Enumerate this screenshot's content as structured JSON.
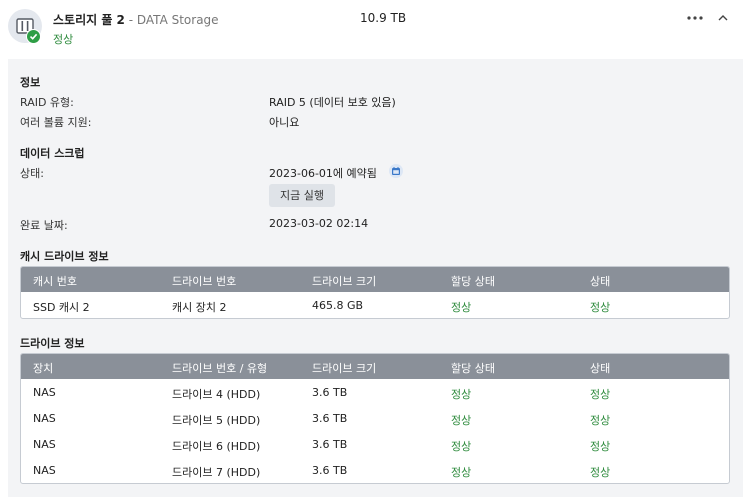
{
  "header": {
    "pool_name": "스토리지 풀 2",
    "pool_desc": " - DATA Storage",
    "status": "정상",
    "size": "10.9 TB",
    "more_icon": "more-horizontal-icon",
    "collapse_icon": "chevron-up-icon"
  },
  "info": {
    "section_title": "정보",
    "raid_type_label": "RAID 유형:",
    "raid_type_value": "RAID 5 (데이터 보호 있음)",
    "multi_volume_label": "여러 볼륨 지원:",
    "multi_volume_value": "아니요"
  },
  "scrub": {
    "section_title": "데이터 스크럽",
    "status_label": "상태:",
    "status_value": "2023-06-01에 예약됨",
    "schedule_icon": "calendar-icon",
    "run_now_label": "지금 실행",
    "completed_label": "완료 날짜:",
    "completed_value": "2023-03-02 02:14"
  },
  "cache": {
    "section_title": "캐시 드라이브 정보",
    "columns": [
      "캐시 번호",
      "드라이브 번호",
      "드라이브 크기",
      "할당 상태",
      "상태"
    ],
    "rows": [
      [
        "SSD 캐시 2",
        "캐시 장치 2",
        "465.8 GB",
        "정상",
        "정상"
      ]
    ]
  },
  "drives": {
    "section_title": "드라이브 정보",
    "columns": [
      "장치",
      "드라이브 번호 / 유형",
      "드라이브 크기",
      "할당 상태",
      "상태"
    ],
    "rows": [
      [
        "NAS",
        "드라이브 4 (HDD)",
        "3.6 TB",
        "정상",
        "정상"
      ],
      [
        "NAS",
        "드라이브 5 (HDD)",
        "3.6 TB",
        "정상",
        "정상"
      ],
      [
        "NAS",
        "드라이브 6 (HDD)",
        "3.6 TB",
        "정상",
        "정상"
      ],
      [
        "NAS",
        "드라이브 7 (HDD)",
        "3.6 TB",
        "정상",
        "정상"
      ]
    ]
  },
  "colors": {
    "ok_green": "#2e8b3d",
    "table_header": "#8a9099",
    "panel_bg": "#f3f4f6"
  }
}
